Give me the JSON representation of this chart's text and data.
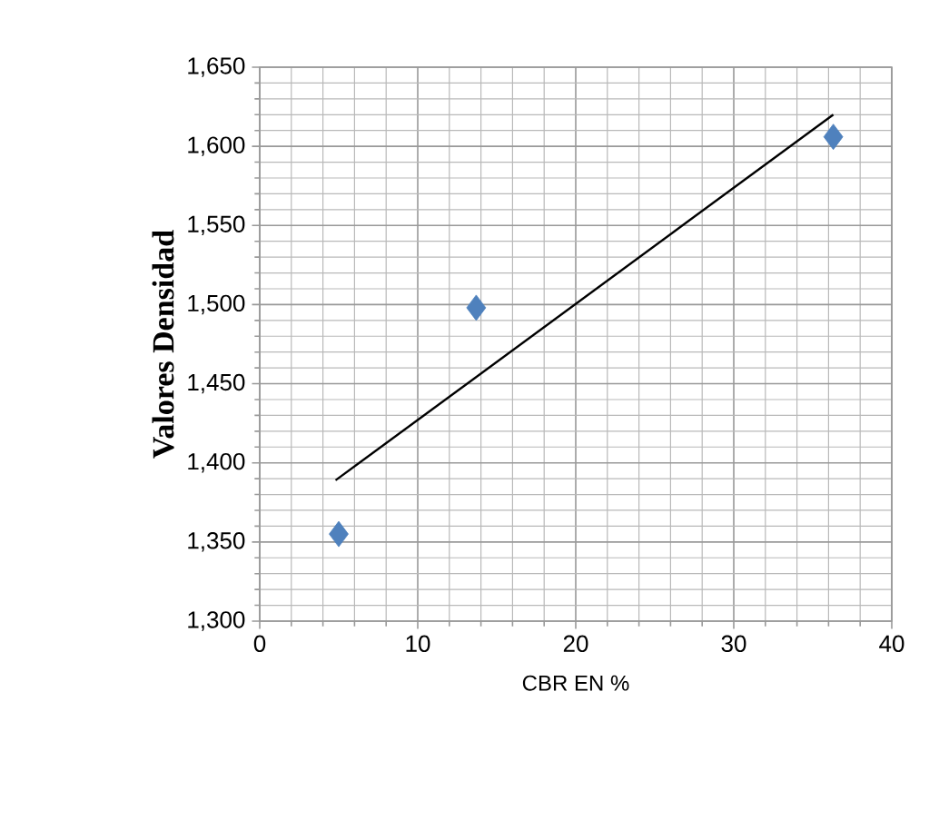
{
  "chart_data": {
    "type": "scatter",
    "xlabel": "CBR EN %",
    "ylabel": "Valores Densidad",
    "xlim": [
      0,
      40
    ],
    "ylim": [
      1300,
      1650
    ],
    "xticks": [
      0,
      10,
      20,
      30,
      40
    ],
    "yticks": [
      {
        "value": 1300,
        "label": "1,300"
      },
      {
        "value": 1350,
        "label": "1,350"
      },
      {
        "value": 1400,
        "label": "1,400"
      },
      {
        "value": 1450,
        "label": "1,450"
      },
      {
        "value": 1500,
        "label": "1,500"
      },
      {
        "value": 1550,
        "label": "1,550"
      },
      {
        "value": 1600,
        "label": "1,600"
      },
      {
        "value": 1650,
        "label": "1,650"
      }
    ],
    "grid": true,
    "marker": "diamond",
    "series": [
      {
        "color": "#4f81bd",
        "x": [
          5,
          13.7,
          36.3
        ],
        "values": [
          1355,
          1498,
          1606
        ]
      },
      {
        "type": "line",
        "color": "#000000",
        "marker": "none",
        "line_style": "solid",
        "x": [
          4.8,
          36.3
        ],
        "values": [
          1389,
          1620
        ]
      }
    ]
  }
}
